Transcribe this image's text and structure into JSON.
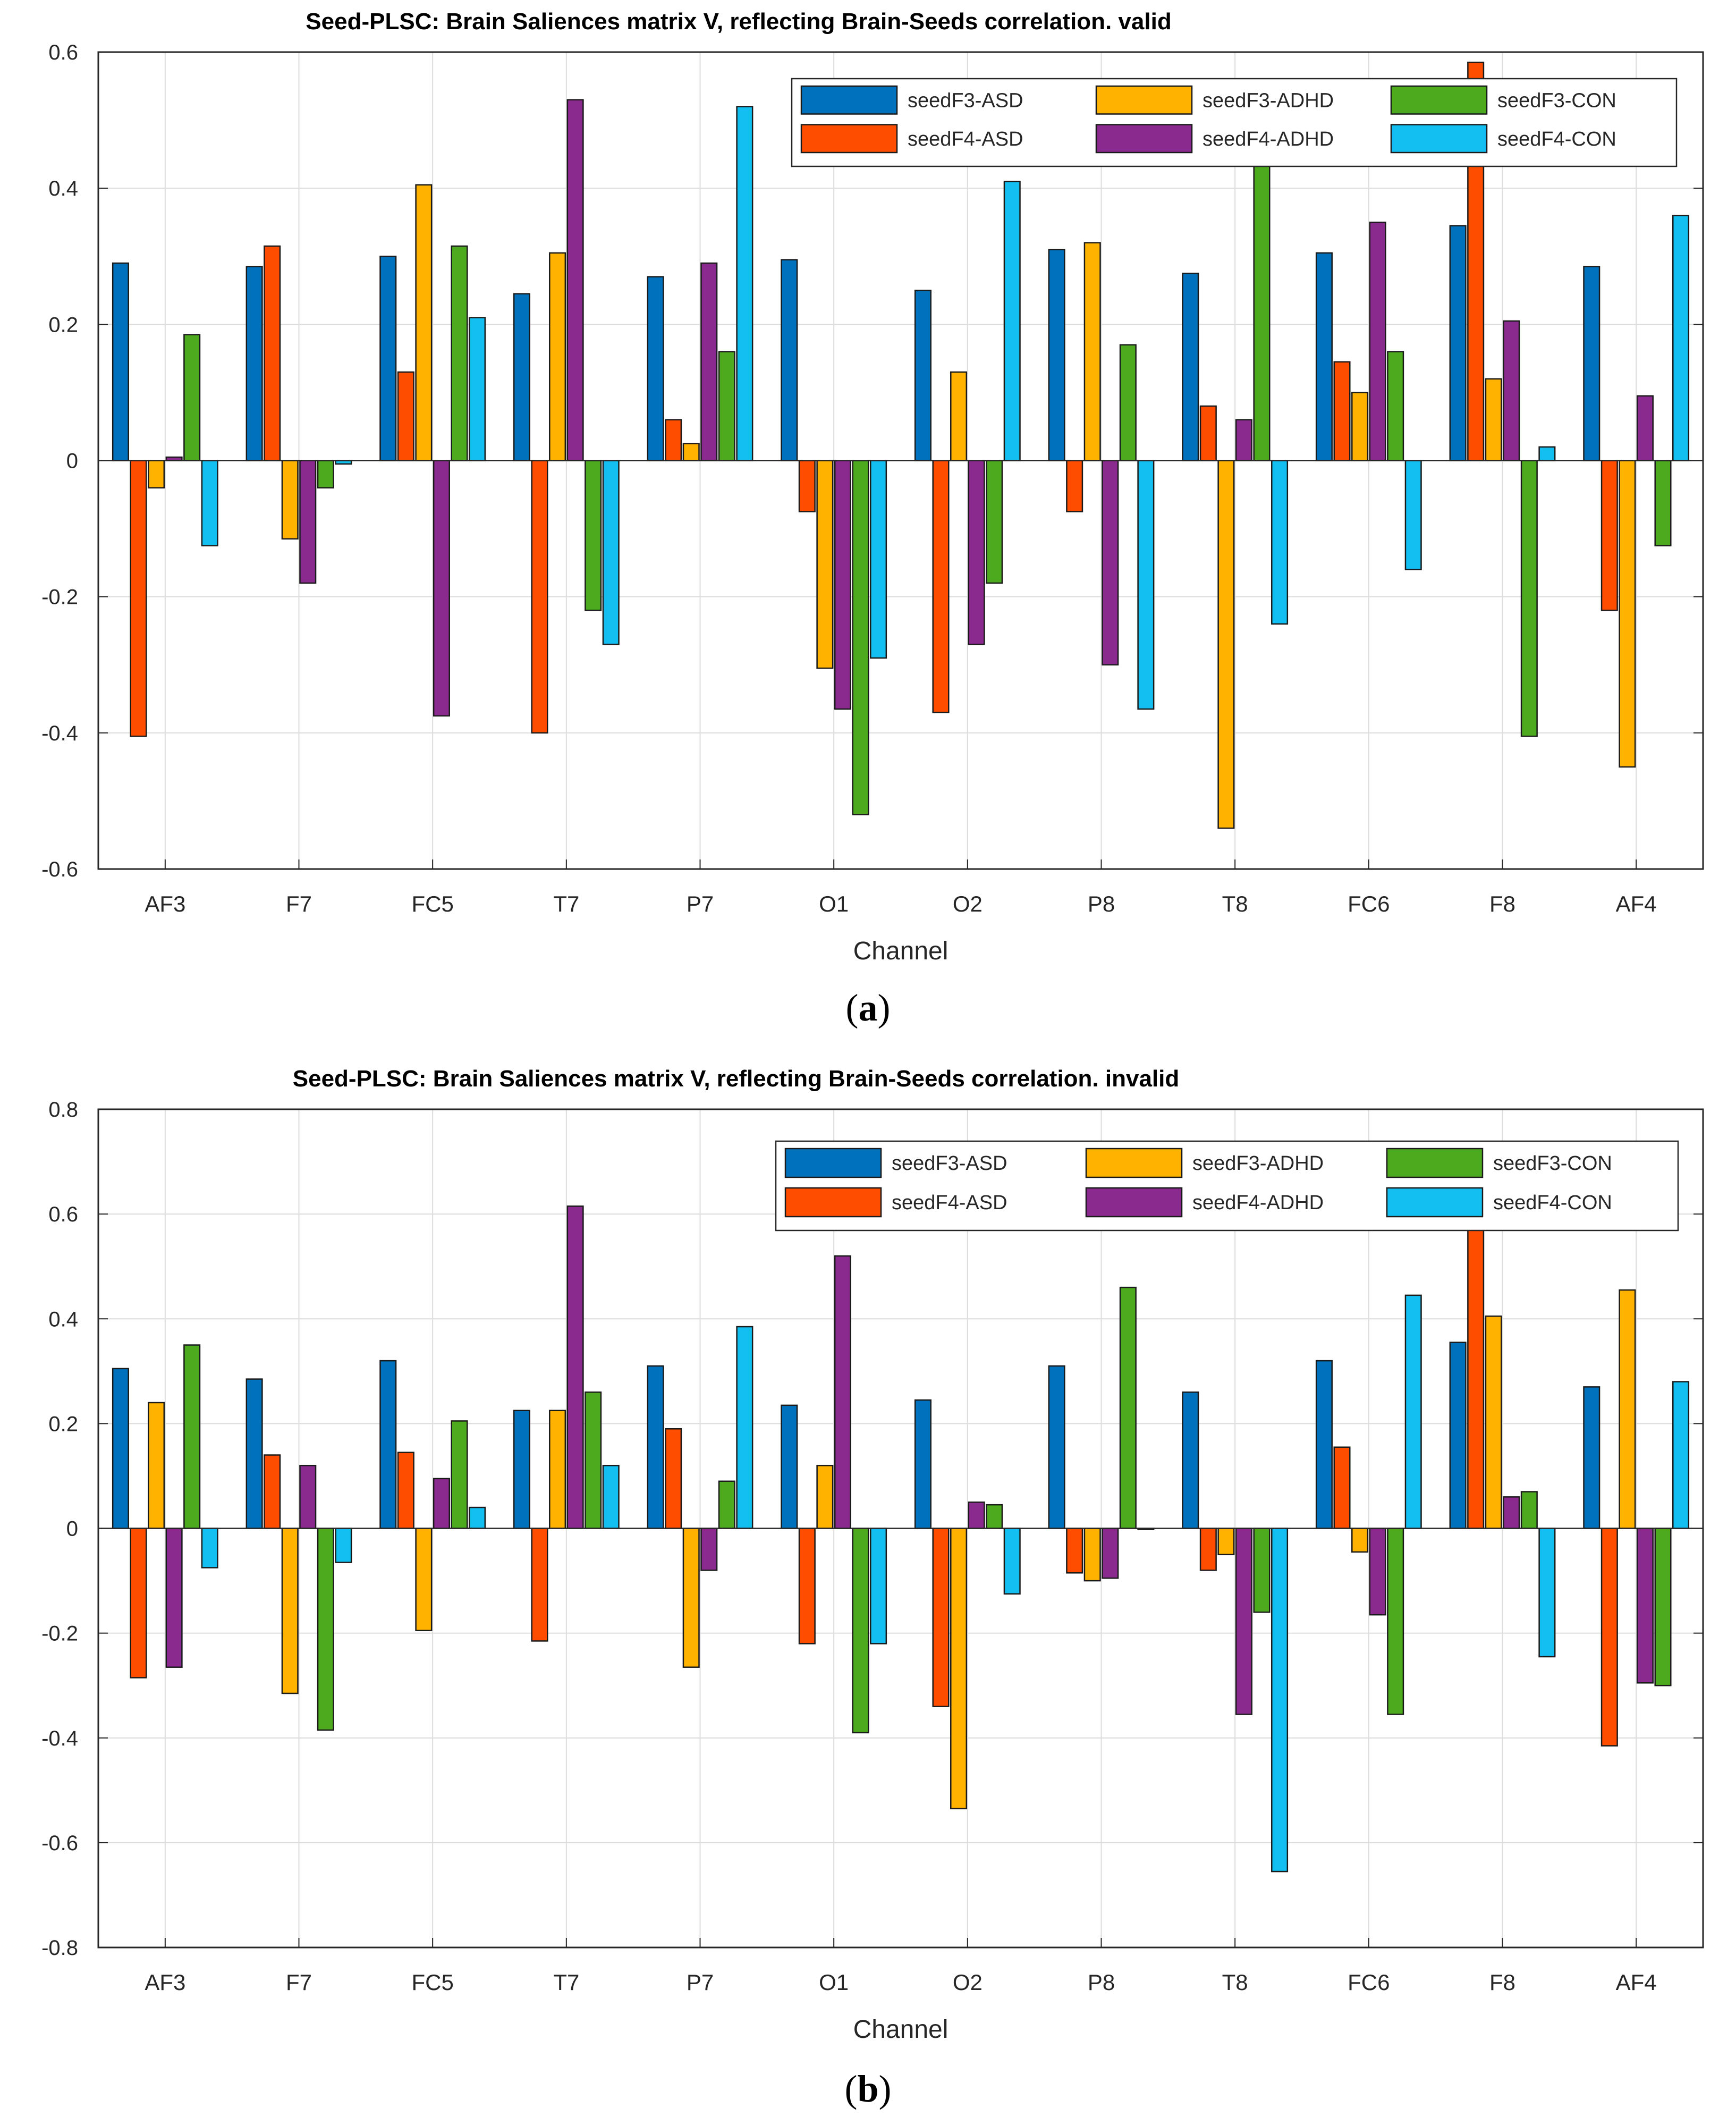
{
  "chart_data": [
    {
      "type": "bar",
      "title": "Seed-PLSC: Brain Saliences matrix V, reflecting Brain-Seeds correlation. valid",
      "xlabel": "Channel",
      "ylabel": "",
      "ylim": [
        -0.6,
        0.6
      ],
      "yticks": [
        "-0.6",
        "-0.4",
        "-0.2",
        "0",
        "0.2",
        "0.4",
        "0.6"
      ],
      "grid": true,
      "legend_position": "top-right",
      "categories": [
        "AF3",
        "F7",
        "FC5",
        "T7",
        "P7",
        "O1",
        "O2",
        "P8",
        "T8",
        "FC6",
        "F8",
        "AF4"
      ],
      "series": [
        {
          "name": "seedF3-ASD",
          "color": "#0072BD",
          "values": [
            0.29,
            0.285,
            0.3,
            0.245,
            0.27,
            0.295,
            0.25,
            0.31,
            0.275,
            0.305,
            0.345,
            0.285
          ]
        },
        {
          "name": "seedF4-ASD",
          "color": "#FF4D00",
          "values": [
            -0.405,
            0.315,
            0.13,
            -0.4,
            0.06,
            -0.075,
            -0.37,
            -0.075,
            0.08,
            0.145,
            0.585,
            -0.22
          ]
        },
        {
          "name": "seedF3-ADHD",
          "color": "#FFB300",
          "values": [
            -0.04,
            -0.115,
            0.405,
            0.305,
            0.025,
            -0.305,
            0.13,
            0.32,
            -0.54,
            0.1,
            0.12,
            -0.45
          ]
        },
        {
          "name": "seedF4-ADHD",
          "color": "#8B2A8E",
          "values": [
            0.005,
            -0.18,
            -0.375,
            0.53,
            0.29,
            -0.365,
            -0.27,
            -0.3,
            0.06,
            0.35,
            0.205,
            0.095
          ]
        },
        {
          "name": "seedF3-CON",
          "color": "#4DAA1F",
          "values": [
            0.185,
            -0.04,
            0.315,
            -0.22,
            0.16,
            -0.52,
            -0.18,
            0.17,
            0.46,
            0.16,
            -0.405,
            -0.125
          ]
        },
        {
          "name": "seedF4-CON",
          "color": "#12BFF0",
          "values": [
            -0.125,
            -0.005,
            0.21,
            -0.27,
            0.52,
            -0.29,
            0.41,
            -0.365,
            -0.24,
            -0.16,
            0.02,
            0.36
          ]
        }
      ],
      "caption_label": "a"
    },
    {
      "type": "bar",
      "title": "Seed-PLSC: Brain Saliences matrix V, reflecting Brain-Seeds correlation. invalid",
      "xlabel": "Channel",
      "ylabel": "",
      "ylim": [
        -0.8,
        0.8
      ],
      "yticks": [
        "-0.8",
        "-0.6",
        "-0.4",
        "-0.2",
        "0",
        "0.2",
        "0.4",
        "0.6",
        "0.8"
      ],
      "grid": true,
      "legend_position": "top-right",
      "categories": [
        "AF3",
        "F7",
        "FC5",
        "T7",
        "P7",
        "O1",
        "O2",
        "P8",
        "T8",
        "FC6",
        "F8",
        "AF4"
      ],
      "series": [
        {
          "name": "seedF3-ASD",
          "color": "#0072BD",
          "values": [
            0.305,
            0.285,
            0.32,
            0.225,
            0.31,
            0.235,
            0.245,
            0.31,
            0.26,
            0.32,
            0.355,
            0.27
          ]
        },
        {
          "name": "seedF4-ASD",
          "color": "#FF4D00",
          "values": [
            -0.285,
            0.14,
            0.145,
            -0.215,
            0.19,
            -0.22,
            -0.34,
            -0.085,
            -0.08,
            0.155,
            0.61,
            -0.415
          ]
        },
        {
          "name": "seedF3-ADHD",
          "color": "#FFB300",
          "values": [
            0.24,
            -0.315,
            -0.195,
            0.225,
            -0.265,
            0.12,
            -0.535,
            -0.1,
            -0.05,
            -0.045,
            0.405,
            0.455
          ]
        },
        {
          "name": "seedF4-ADHD",
          "color": "#8B2A8E",
          "values": [
            -0.265,
            0.12,
            0.095,
            0.615,
            -0.08,
            0.52,
            0.05,
            -0.095,
            -0.355,
            -0.165,
            0.06,
            -0.295
          ]
        },
        {
          "name": "seedF3-CON",
          "color": "#4DAA1F",
          "values": [
            0.35,
            -0.385,
            0.205,
            0.26,
            0.09,
            -0.39,
            0.045,
            0.46,
            -0.16,
            -0.355,
            0.07,
            -0.3
          ]
        },
        {
          "name": "seedF4-CON",
          "color": "#12BFF0",
          "values": [
            -0.075,
            -0.065,
            0.04,
            0.12,
            0.385,
            -0.22,
            -0.125,
            0.0,
            -0.655,
            0.445,
            -0.245,
            0.28
          ]
        }
      ],
      "caption_label": "b"
    }
  ]
}
